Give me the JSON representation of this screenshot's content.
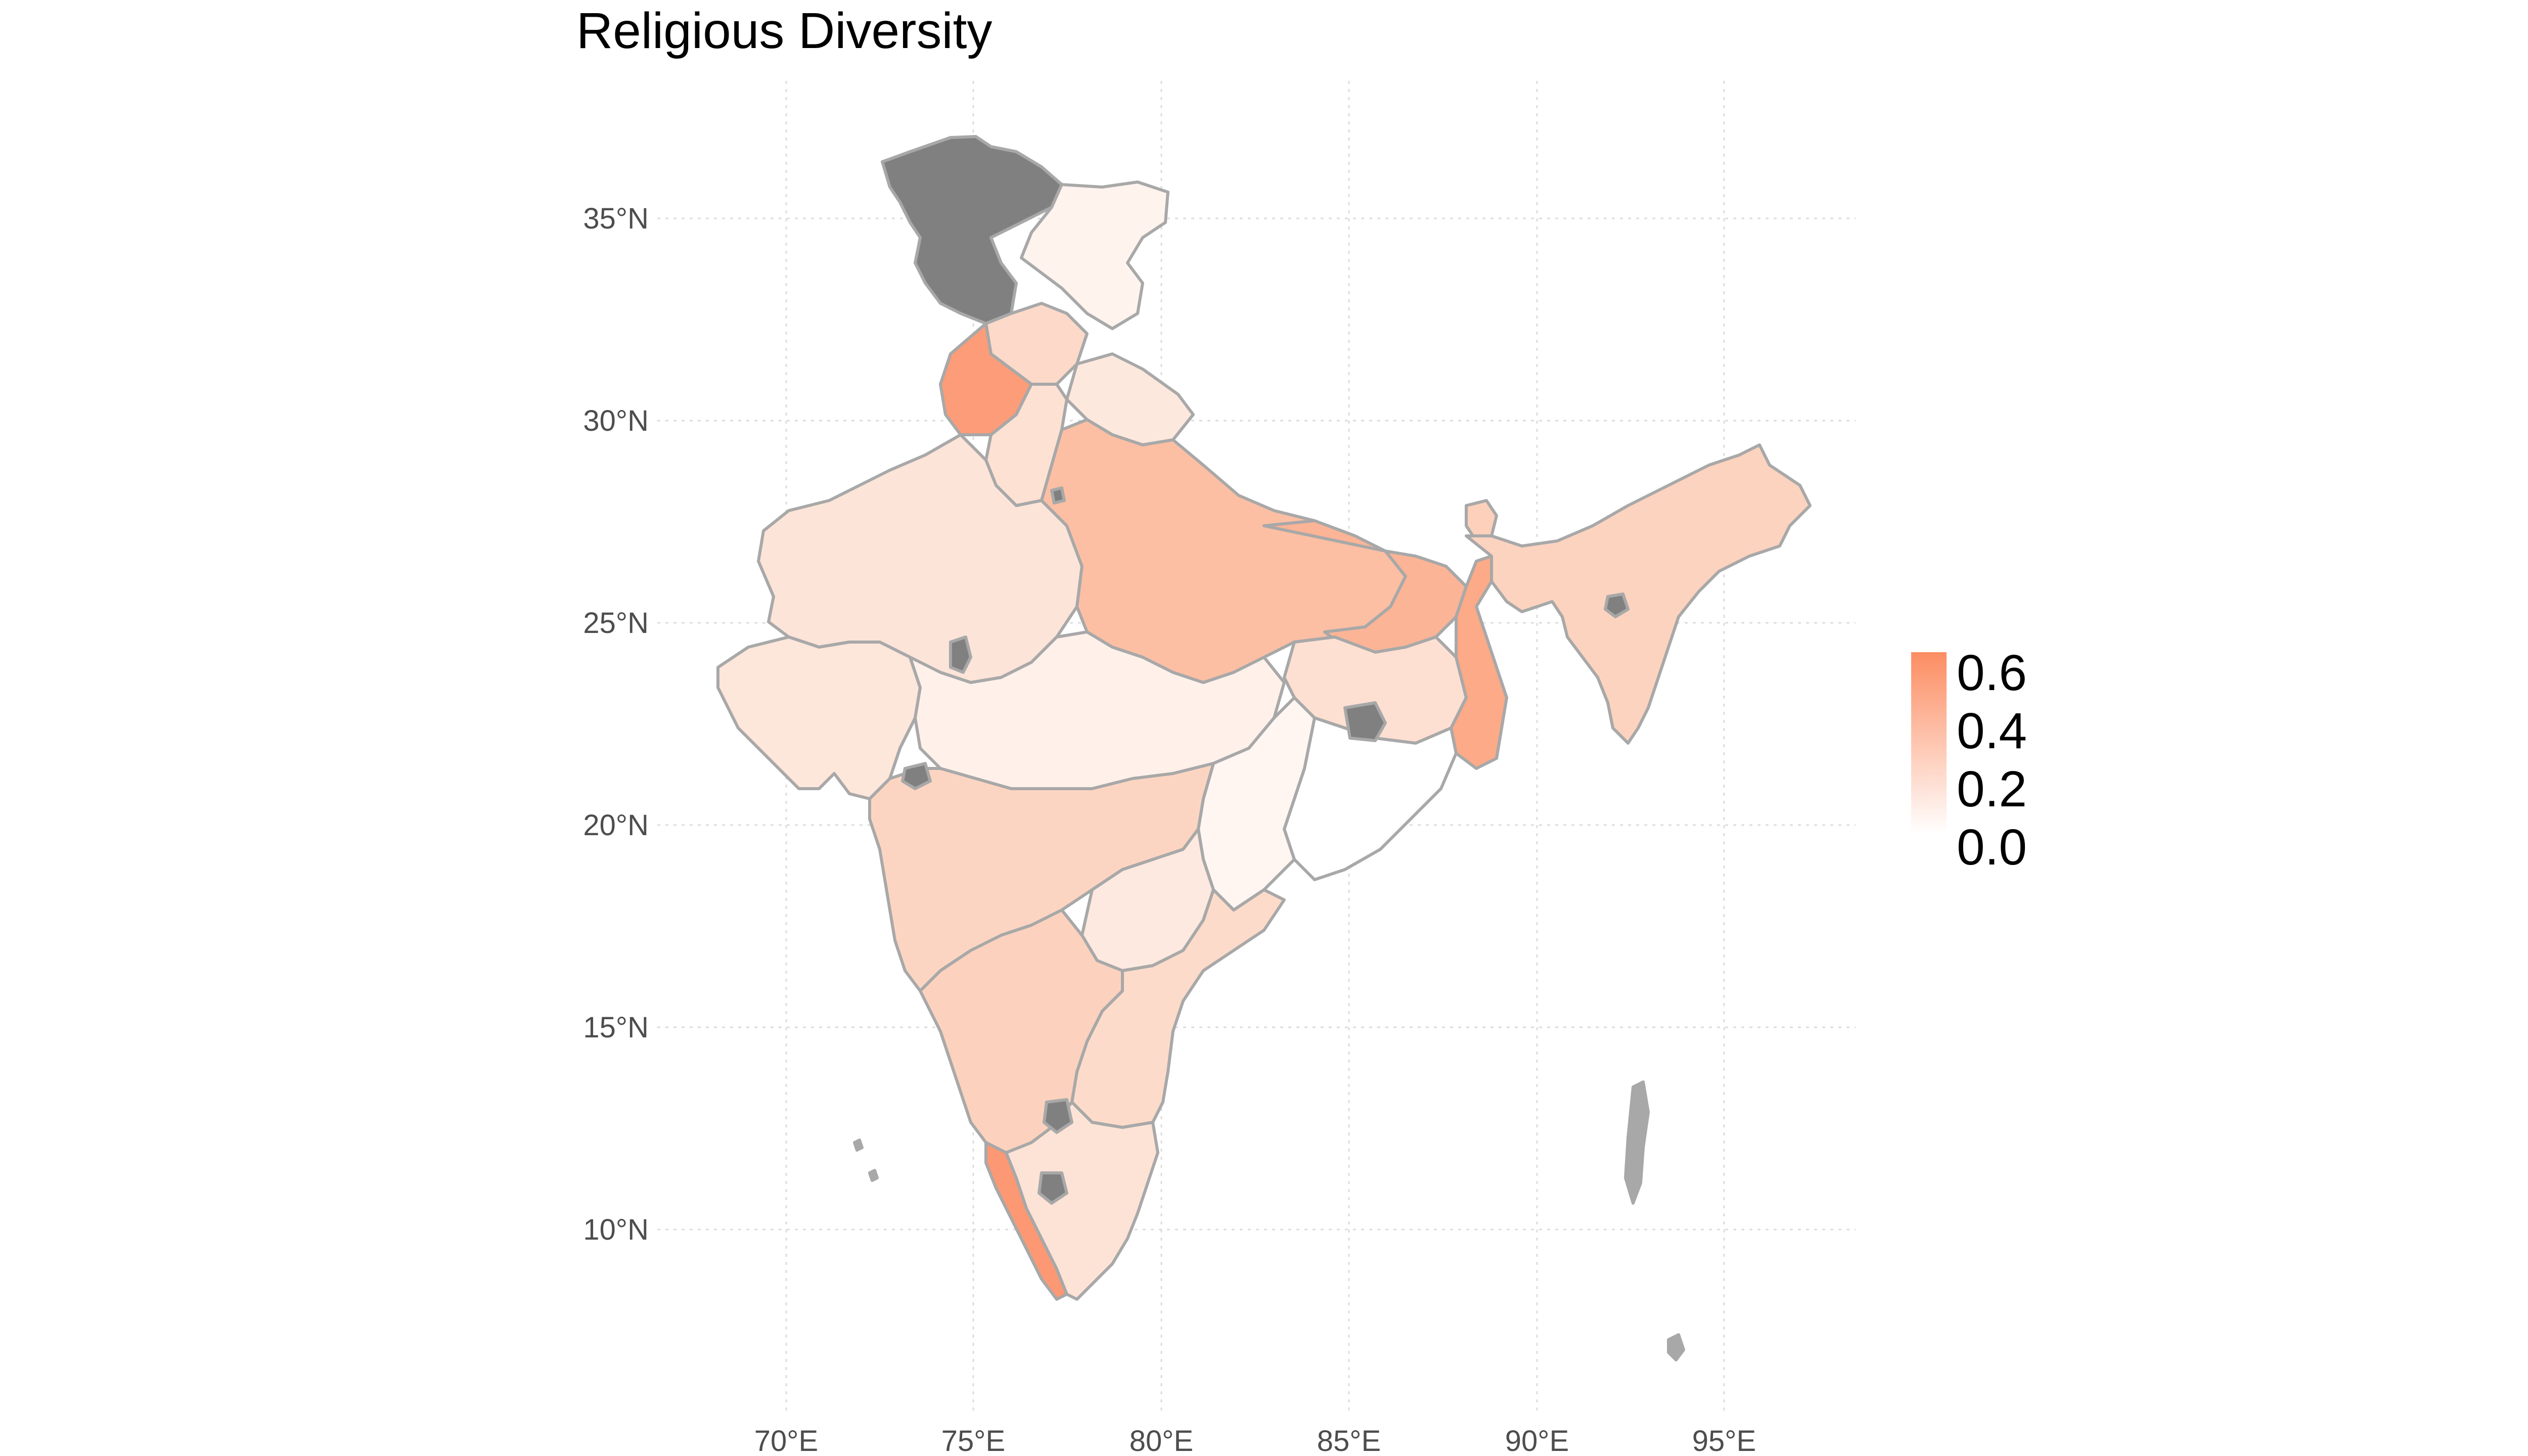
{
  "title": "Religious Diversity",
  "chart_data": {
    "type": "choropleth",
    "title": "Religious Diversity",
    "x_ticks": [
      "70°E",
      "75°E",
      "80°E",
      "85°E",
      "90°E",
      "95°E"
    ],
    "y_ticks": [
      "35°N",
      "30°N",
      "25°N",
      "20°N",
      "15°N",
      "10°N"
    ],
    "legend": {
      "labels": [
        "0.6",
        "0.4",
        "0.2",
        "0.0"
      ],
      "min": 0.0,
      "max": 0.65,
      "low_color": "#ffffff",
      "high_color": "#fc8d62",
      "na_color": "#808080",
      "placement": "right"
    },
    "grid": true
  }
}
